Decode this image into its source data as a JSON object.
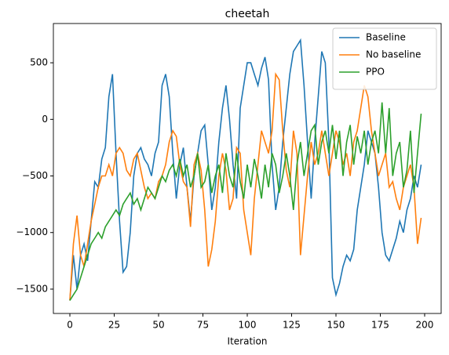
{
  "chart_data": {
    "type": "line",
    "title": "cheetah",
    "x_label": "Iteration",
    "x": [
      0,
      2,
      4,
      6,
      8,
      10,
      12,
      14,
      16,
      18,
      20,
      22,
      24,
      26,
      28,
      30,
      32,
      34,
      36,
      38,
      40,
      42,
      44,
      46,
      48,
      50,
      52,
      54,
      56,
      58,
      60,
      62,
      64,
      66,
      68,
      70,
      72,
      74,
      76,
      78,
      80,
      82,
      84,
      86,
      88,
      90,
      92,
      94,
      96,
      98,
      100,
      102,
      104,
      106,
      108,
      110,
      112,
      114,
      116,
      118,
      120,
      122,
      124,
      126,
      128,
      130,
      132,
      134,
      136,
      138,
      140,
      142,
      144,
      146,
      148,
      150,
      152,
      154,
      156,
      158,
      160,
      162,
      164,
      166,
      168,
      170,
      172,
      174,
      176,
      178,
      180,
      182,
      184,
      186,
      188,
      190,
      192,
      194,
      196,
      198
    ],
    "series": [
      {
        "name": "Baseline",
        "color": "#1f77b4",
        "values": [
          -1600,
          -1200,
          -1500,
          -1200,
          -1100,
          -1250,
          -900,
          -550,
          -600,
          -350,
          -250,
          200,
          400,
          -300,
          -900,
          -1350,
          -1300,
          -1000,
          -500,
          -300,
          -250,
          -350,
          -400,
          -500,
          -300,
          -200,
          300,
          400,
          200,
          -300,
          -700,
          -400,
          -250,
          -600,
          -900,
          -500,
          -300,
          -100,
          -50,
          -400,
          -800,
          -600,
          -200,
          100,
          300,
          0,
          -400,
          -700,
          100,
          300,
          500,
          500,
          400,
          300,
          450,
          550,
          350,
          -400,
          -800,
          -600,
          -200,
          100,
          400,
          600,
          650,
          700,
          300,
          -200,
          -700,
          -200,
          200,
          600,
          500,
          -200,
          -1400,
          -1550,
          -1450,
          -1300,
          -1200,
          -1250,
          -1150,
          -800,
          -600,
          -400,
          -100,
          -200,
          -300,
          -600,
          -1000,
          -1200,
          -1250,
          -1150,
          -1050,
          -900,
          -1000,
          -800,
          -700,
          -500,
          -600,
          -400
        ]
      },
      {
        "name": "No baseline",
        "color": "#ff7f0e",
        "values": [
          -1600,
          -1100,
          -850,
          -1200,
          -1300,
          -1100,
          -900,
          -750,
          -600,
          -500,
          -500,
          -400,
          -500,
          -300,
          -250,
          -300,
          -450,
          -500,
          -350,
          -300,
          -450,
          -600,
          -700,
          -650,
          -700,
          -550,
          -500,
          -400,
          -200,
          -100,
          -150,
          -400,
          -550,
          -600,
          -950,
          -400,
          -300,
          -450,
          -800,
          -1300,
          -1150,
          -900,
          -500,
          -300,
          -450,
          -800,
          -700,
          -250,
          -300,
          -800,
          -1000,
          -1200,
          -700,
          -400,
          -100,
          -200,
          -300,
          -100,
          400,
          350,
          -100,
          -450,
          -600,
          -100,
          -300,
          -1200,
          -850,
          -500,
          -200,
          -400,
          -300,
          -100,
          -300,
          -500,
          -300,
          -100,
          -200,
          -400,
          -300,
          -500,
          -200,
          -100,
          100,
          300,
          200,
          -100,
          -300,
          -500,
          -400,
          -300,
          -600,
          -550,
          -700,
          -800,
          -600,
          -500,
          -400,
          -600,
          -1100,
          -870
        ]
      },
      {
        "name": "PPO",
        "color": "#2ca02c",
        "values": [
          -1600,
          -1550,
          -1500,
          -1400,
          -1300,
          -1200,
          -1100,
          -1050,
          -1000,
          -1050,
          -950,
          -900,
          -850,
          -800,
          -850,
          -750,
          -700,
          -650,
          -750,
          -700,
          -800,
          -700,
          -600,
          -650,
          -700,
          -600,
          -500,
          -550,
          -450,
          -400,
          -500,
          -350,
          -500,
          -400,
          -600,
          -500,
          -300,
          -600,
          -550,
          -400,
          -650,
          -500,
          -400,
          -650,
          -300,
          -500,
          -600,
          -300,
          -550,
          -700,
          -400,
          -600,
          -350,
          -500,
          -700,
          -400,
          -600,
          -300,
          -400,
          -650,
          -500,
          -300,
          -500,
          -800,
          -400,
          -200,
          -500,
          -300,
          -100,
          -50,
          -400,
          -200,
          -100,
          -300,
          -50,
          -350,
          -100,
          -500,
          -200,
          -50,
          -400,
          -150,
          -300,
          -100,
          -400,
          -200,
          -100,
          -300,
          150,
          -300,
          100,
          -500,
          -300,
          -200,
          -600,
          -450,
          -100,
          -650,
          -300,
          50
        ]
      }
    ],
    "xlim": [
      -9.3,
      209.3
    ],
    "ylim": [
      -1715,
      847
    ],
    "xticks": [
      0,
      25,
      50,
      75,
      100,
      125,
      150,
      175,
      200
    ],
    "yticks": [
      {
        "value": -1500,
        "label": "−1500"
      },
      {
        "value": -1000,
        "label": "−1000"
      },
      {
        "value": -500,
        "label": "−500"
      },
      0,
      500
    ],
    "legend": "upper right"
  }
}
